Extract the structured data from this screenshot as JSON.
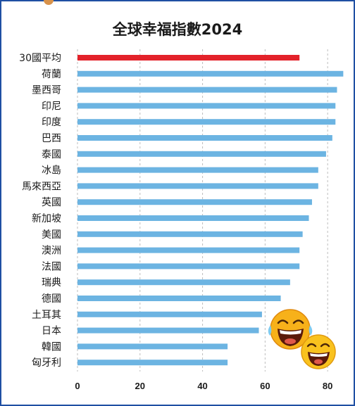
{
  "chart_data": {
    "type": "bar",
    "orientation": "horizontal",
    "title": "全球幸福指數2024",
    "categories": [
      "30國平均",
      "荷蘭",
      "墨西哥",
      "印尼",
      "印度",
      "巴西",
      "泰國",
      "冰島",
      "馬來西亞",
      "英國",
      "新加坡",
      "美國",
      "澳洲",
      "法國",
      "瑞典",
      "德國",
      "土耳其",
      "日本",
      "韓國",
      "匈牙利"
    ],
    "values": [
      71,
      85,
      83,
      82.5,
      82.5,
      81.5,
      79.5,
      77,
      77,
      75,
      74,
      72,
      71,
      71,
      68,
      65,
      59,
      58,
      48,
      48
    ],
    "colors": [
      "#e3222a",
      "#6cb4e2",
      "#6cb4e2",
      "#6cb4e2",
      "#6cb4e2",
      "#6cb4e2",
      "#6cb4e2",
      "#6cb4e2",
      "#6cb4e2",
      "#6cb4e2",
      "#6cb4e2",
      "#6cb4e2",
      "#6cb4e2",
      "#6cb4e2",
      "#6cb4e2",
      "#6cb4e2",
      "#6cb4e2",
      "#6cb4e2",
      "#6cb4e2",
      "#6cb4e2"
    ],
    "xlim": [
      0,
      85
    ],
    "xticks": [
      0,
      20,
      40,
      60,
      80
    ],
    "grid": true,
    "xlabel": "",
    "ylabel": ""
  },
  "decorations": [
    "laughing-emoji-large",
    "laughing-emoji-small"
  ]
}
